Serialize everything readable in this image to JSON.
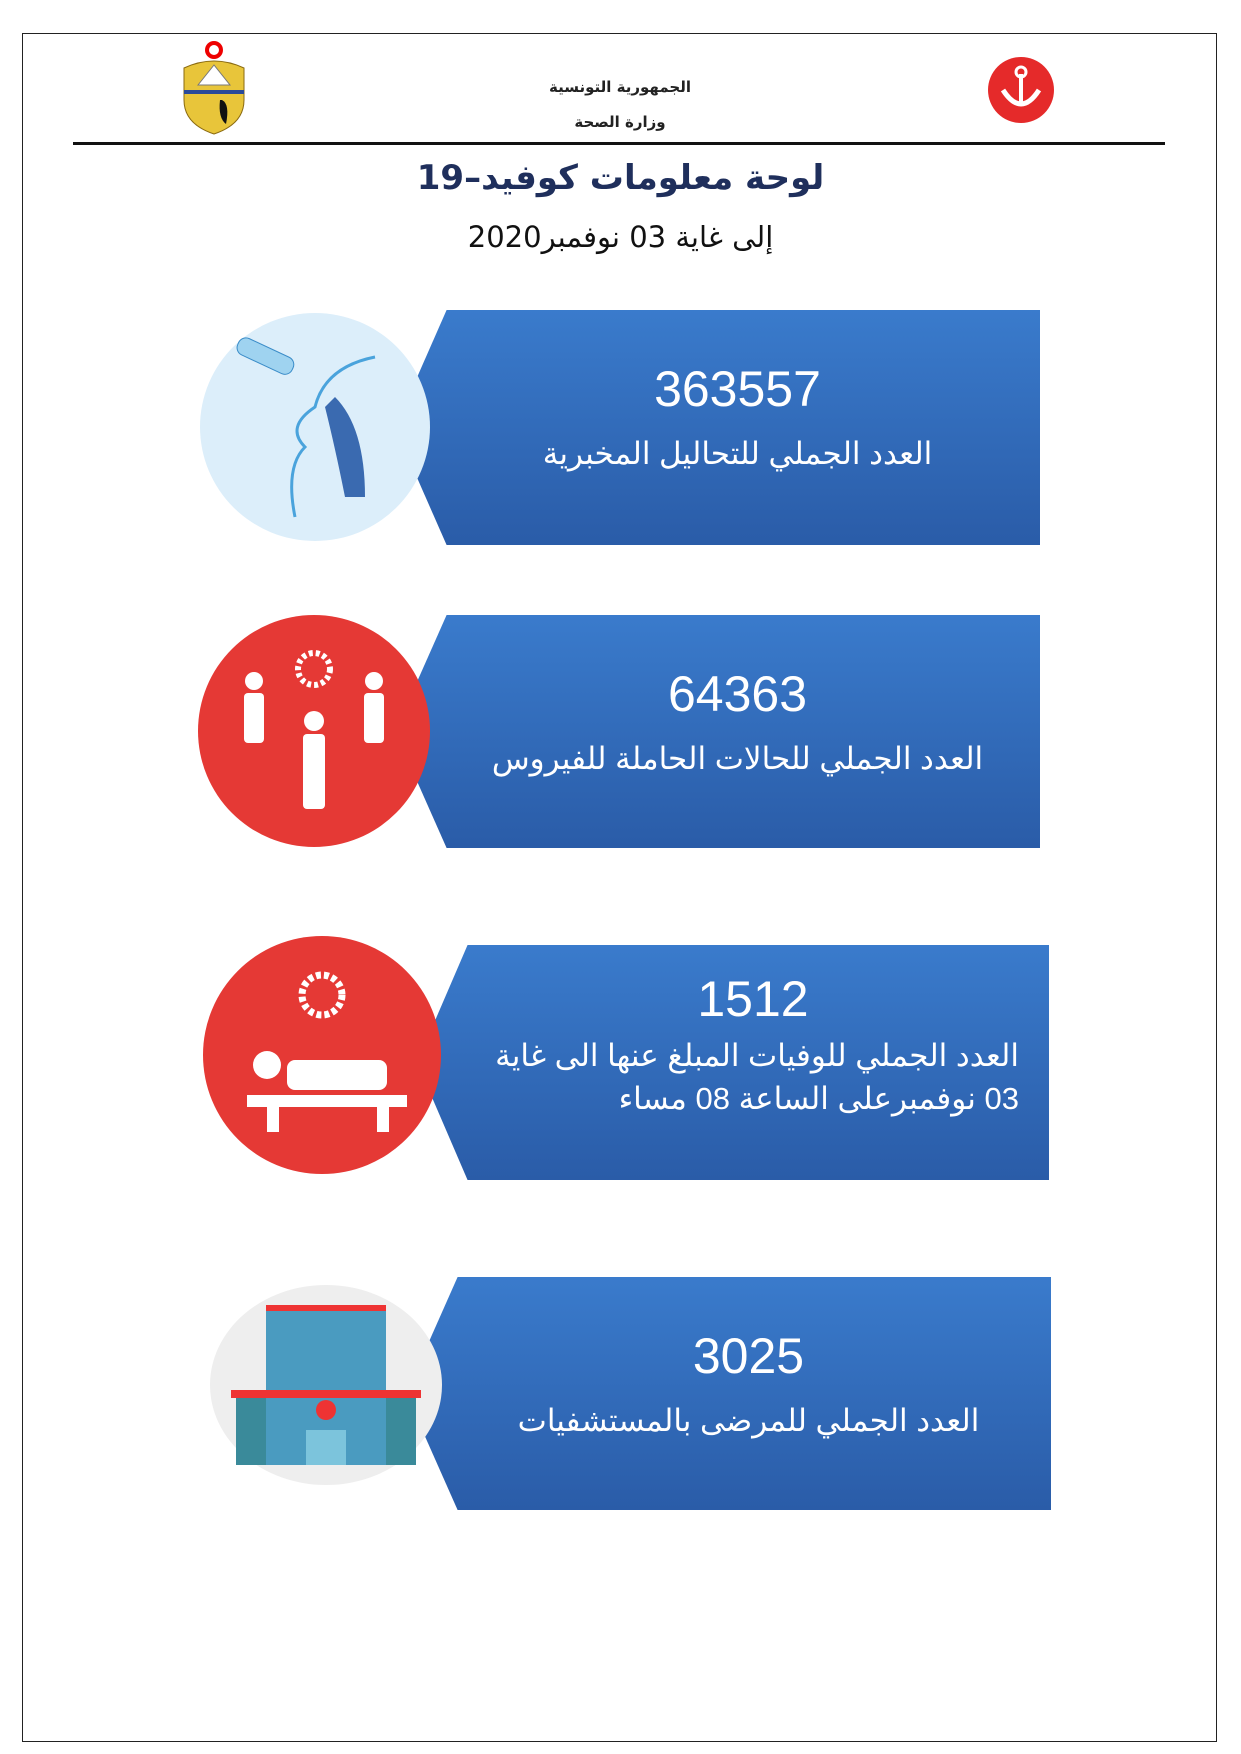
{
  "header": {
    "line1": "الجمهورية التونسية",
    "line2": "وزارة الصحة"
  },
  "title": "لوحة معلومات كوفيد–19",
  "subtitle": "إلى غاية 03 نوفمبر2020",
  "colors": {
    "banner": "#3a7bcc",
    "icon_red": "#e53935",
    "title": "#1f2f5c"
  },
  "cards": [
    {
      "value": "363557",
      "label": "العدد الجملي للتحاليل المخبرية",
      "icon": "nasal-swab-test-icon"
    },
    {
      "value": "64363",
      "label": "العدد  الجملي للحالات الحاملة للفيروس",
      "icon": "infected-people-icon"
    },
    {
      "value": "1512",
      "label": "العدد الجملي للوفيات المبلغ عنها الى غاية 03 نوفمبرعلى الساعة 08 مساء",
      "icon": "patient-bed-virus-icon"
    },
    {
      "value": "3025",
      "label": "العدد الجملي للمرضى بالمستشفيات",
      "icon": "hospital-icon"
    }
  ]
}
